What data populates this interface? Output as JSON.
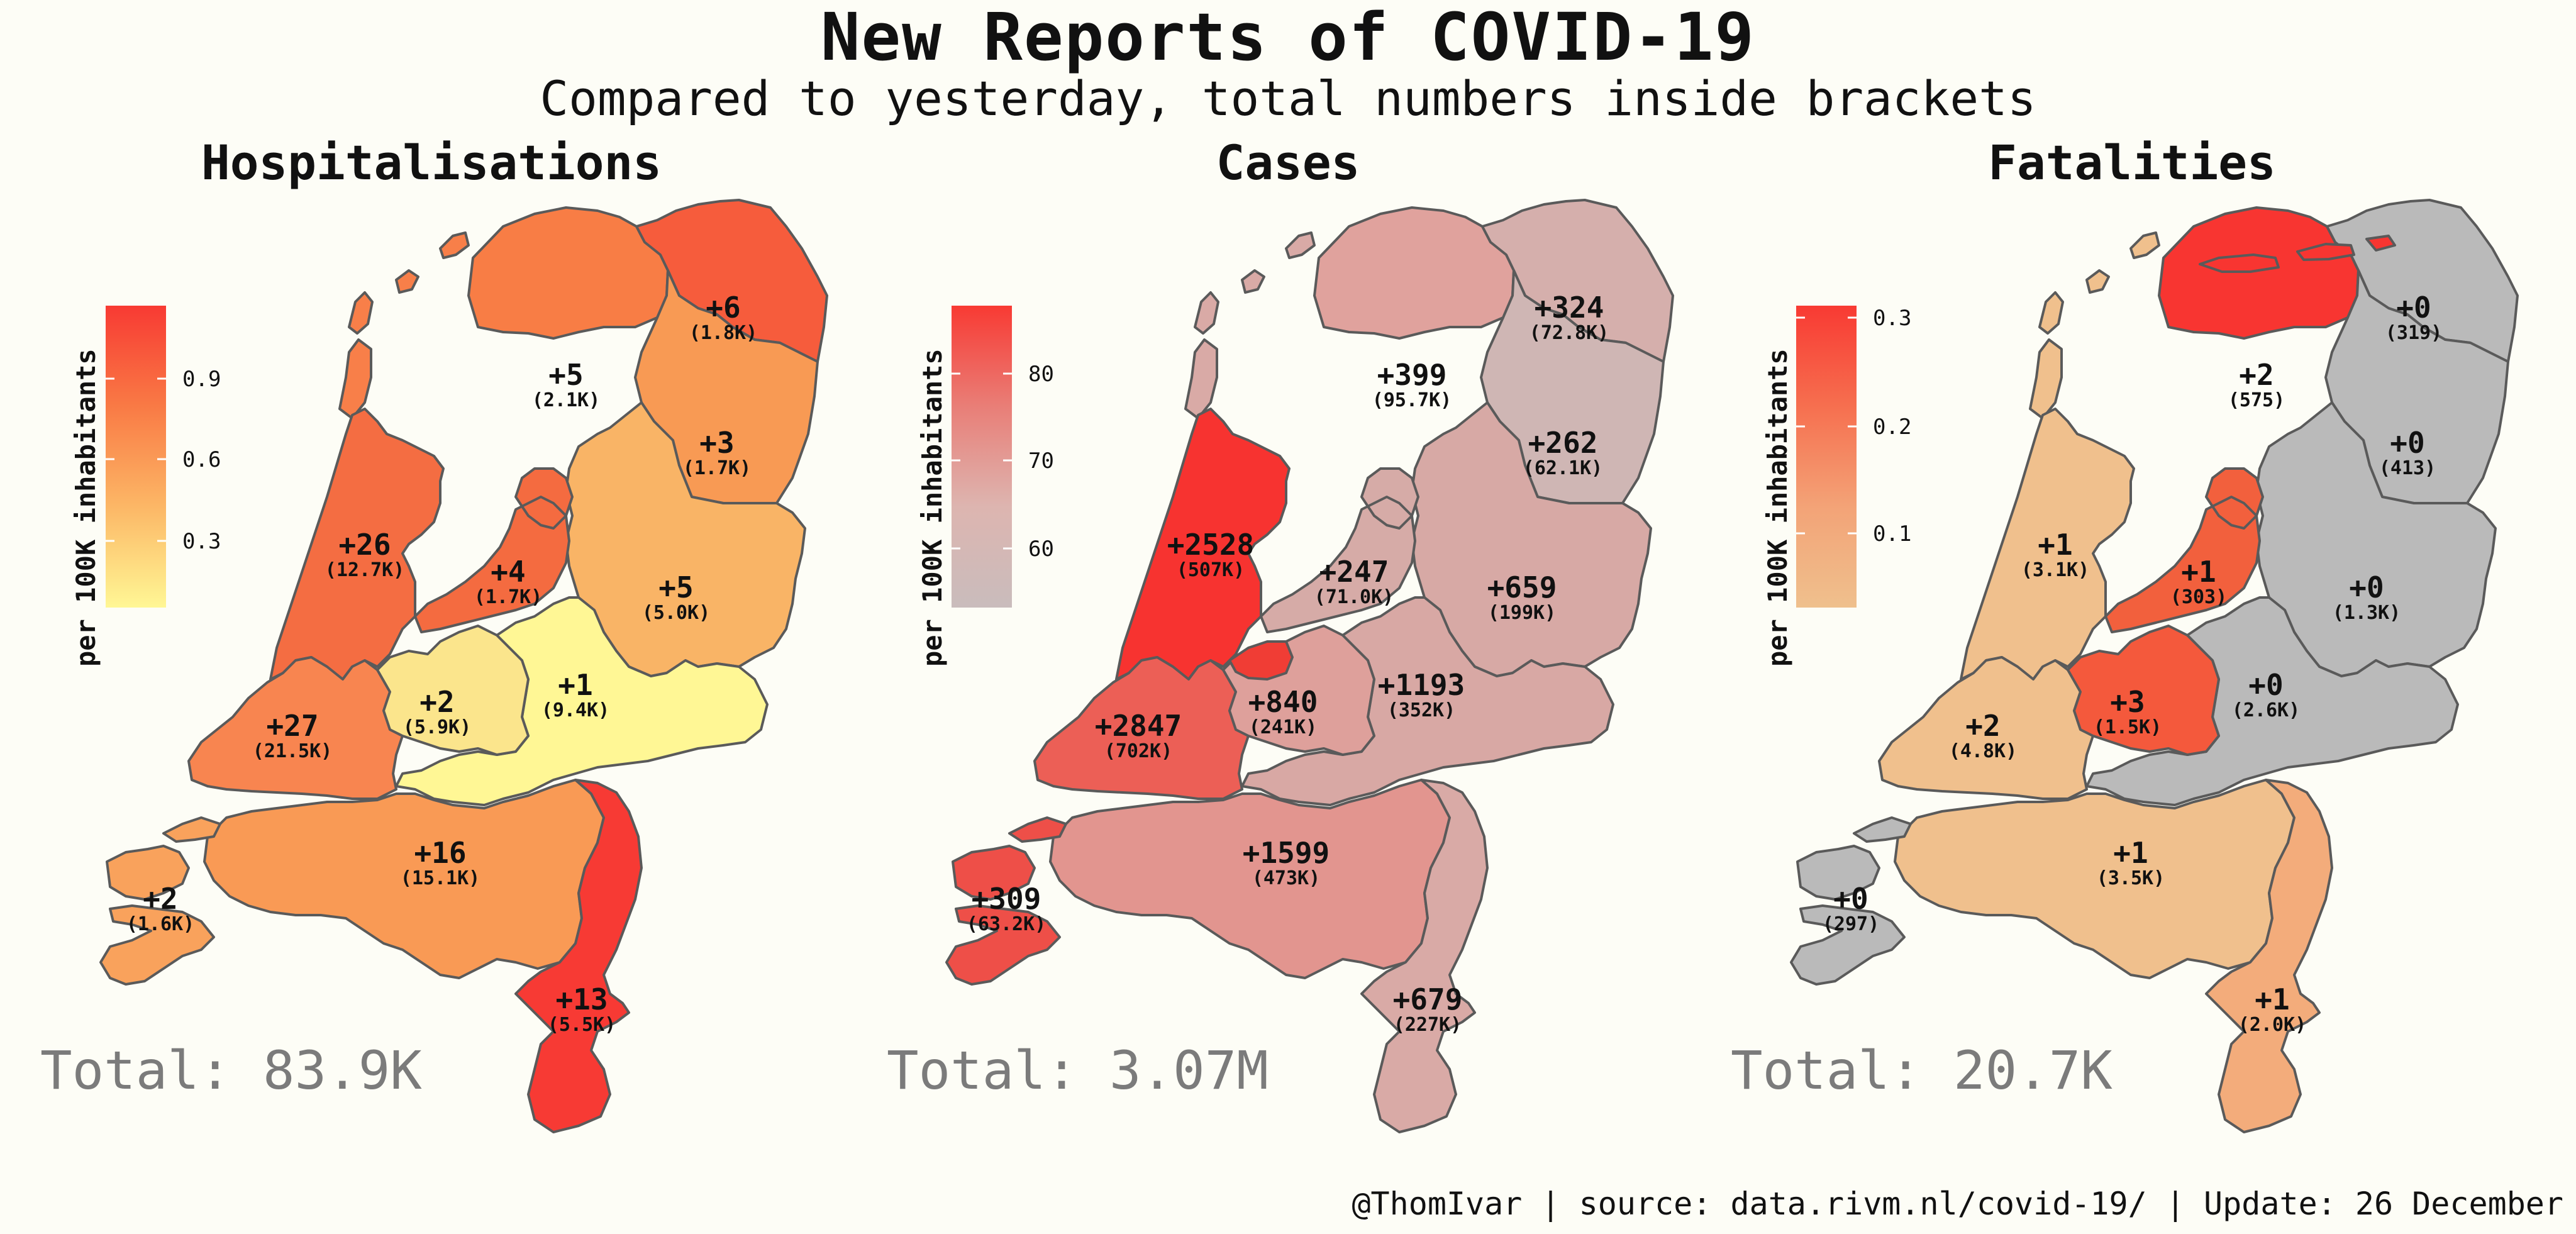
{
  "title": "New Reports of COVID-19",
  "subtitle": "Compared to yesterday, total numbers inside brackets",
  "footer": "@ThomIvar | source: data.rivm.nl/covid-19/ | Update: 26 December",
  "legend_title": "per 100K inhabitants",
  "colors": {
    "background": "#fdfdf6",
    "border": "#5a5a5a",
    "no_data_gray": "#bababa",
    "total_text": "#7b7b7b"
  },
  "panels": [
    {
      "key": "hospitalisations",
      "title": "Hospitalisations",
      "total": "Total: 83.9K",
      "legend": {
        "ticks": [
          "0.9",
          "0.6",
          "0.3"
        ],
        "gradient": [
          "#f83a33",
          "#f97a45",
          "#fcb766",
          "#fff795"
        ]
      },
      "provinces": {
        "friesland": {
          "new": "+5",
          "total": "(2.1K)",
          "color": "#f87d45"
        },
        "groningen": {
          "new": "+6",
          "total": "(1.8K)",
          "color": "#f65c3c"
        },
        "drenthe": {
          "new": "+3",
          "total": "(1.7K)",
          "color": "#f89a54"
        },
        "overijssel": {
          "new": "+5",
          "total": "(5.0K)",
          "color": "#f9b466"
        },
        "flevoland": {
          "new": "+4",
          "total": "(1.7K)",
          "color": "#f46b40"
        },
        "nholland": {
          "new": "+26",
          "total": "(12.7K)",
          "color": "#f46d42"
        },
        "utrecht": {
          "new": "+2",
          "total": "(5.9K)",
          "color": "#fbe58c"
        },
        "gelderland": {
          "new": "+1",
          "total": "(9.4K)",
          "color": "#fff795"
        },
        "zholland": {
          "new": "+27",
          "total": "(21.5K)",
          "color": "#f88550"
        },
        "zeeland": {
          "new": "+2",
          "total": "(1.6K)",
          "color": "#f9a25c"
        },
        "brabant": {
          "new": "+16",
          "total": "(15.1K)",
          "color": "#f99a55"
        },
        "limburg": {
          "new": "+13",
          "total": "(5.5K)",
          "color": "#f73a34"
        },
        "wadden": {
          "color": "#f87f49"
        }
      }
    },
    {
      "key": "cases",
      "title": "Cases",
      "total": "Total: 3.07M",
      "legend": {
        "ticks": [
          "80",
          "70",
          "60"
        ],
        "gradient": [
          "#f83a33",
          "#e97e77",
          "#ddb5b0",
          "#c9bcbc"
        ]
      },
      "provinces": {
        "friesland": {
          "new": "+399",
          "total": "(95.7K)",
          "color": "#e0a29d"
        },
        "groningen": {
          "new": "+324",
          "total": "(72.8K)",
          "color": "#d5afac"
        },
        "drenthe": {
          "new": "+262",
          "total": "(62.1K)",
          "color": "#cfb6b4"
        },
        "overijssel": {
          "new": "+659",
          "total": "(199K)",
          "color": "#d7a9a5"
        },
        "flevoland": {
          "new": "+247",
          "total": "(71.0K)",
          "color": "#d6aba7"
        },
        "nholland": {
          "new": "+2528",
          "total": "(507K)",
          "color": "#f73330"
        },
        "utrecht": {
          "new": "+840",
          "total": "(241K)",
          "color": "#dea09b"
        },
        "gelderland": {
          "new": "+1193",
          "total": "(352K)",
          "color": "#d8a8a4"
        },
        "zholland": {
          "new": "+2847",
          "total": "(702K)",
          "color": "#ec5f56"
        },
        "zeeland": {
          "new": "+309",
          "total": "(63.2K)",
          "color": "#ee4f48"
        },
        "brabant": {
          "new": "+1599",
          "total": "(473K)",
          "color": "#e2958f"
        },
        "limburg": {
          "new": "+679",
          "total": "(227K)",
          "color": "#d9aaa6"
        },
        "wadden": {
          "color": "#d9aaa6"
        },
        "almere": {
          "color": "#f03d35"
        }
      }
    },
    {
      "key": "fatalities",
      "title": "Fatalities",
      "total": "Total: 20.7K",
      "legend": {
        "ticks": [
          "0.3",
          "0.2",
          "0.1"
        ],
        "gradient": [
          "#f83a33",
          "#f66f4f",
          "#f3a377",
          "#efc08d"
        ]
      },
      "provinces": {
        "friesland": {
          "new": "+2",
          "total": "(575)",
          "color": "#f83531"
        },
        "groningen": {
          "new": "+0",
          "total": "(319)",
          "color": "#bababa"
        },
        "drenthe": {
          "new": "+0",
          "total": "(413)",
          "color": "#bababa"
        },
        "overijssel": {
          "new": "+0",
          "total": "(1.3K)",
          "color": "#bababa"
        },
        "flevoland": {
          "new": "+1",
          "total": "(303)",
          "color": "#f2603d"
        },
        "nholland": {
          "new": "+1",
          "total": "(3.1K)",
          "color": "#f0c08d"
        },
        "utrecht": {
          "new": "+3",
          "total": "(1.5K)",
          "color": "#f4593c"
        },
        "gelderland": {
          "new": "+0",
          "total": "(2.6K)",
          "color": "#bababa"
        },
        "zholland": {
          "new": "+2",
          "total": "(4.8K)",
          "color": "#f0c08d"
        },
        "zeeland": {
          "new": "+0",
          "total": "(297)",
          "color": "#bababa"
        },
        "brabant": {
          "new": "+1",
          "total": "(3.5K)",
          "color": "#f0c08d"
        },
        "limburg": {
          "new": "+1",
          "total": "(2.0K)",
          "color": "#f3ac7b"
        },
        "wadden": {
          "color": "#f0c08d"
        },
        "wadden_north": {
          "color": "#f83531"
        }
      }
    }
  ]
}
